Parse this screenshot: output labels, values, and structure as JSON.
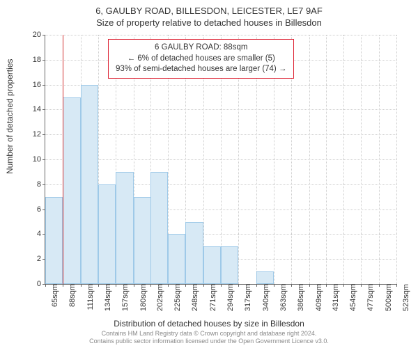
{
  "title": {
    "main": "6, GAULBY ROAD, BILLESDON, LEICESTER, LE7 9AF",
    "sub": "Size of property relative to detached houses in Billesdon"
  },
  "ylabel": "Number of detached properties",
  "xlabel": "Distribution of detached houses by size in Billesdon",
  "attribution_line1": "Contains HM Land Registry data © Crown copyright and database right 2024.",
  "attribution_line2": "Contains public sector information licensed under the Open Government Licence v3.0.",
  "info_box": {
    "line1": "6 GAULBY ROAD: 88sqm",
    "line2": "← 6% of detached houses are smaller (5)",
    "line3": "93% of semi-detached houses are larger (74) →"
  },
  "chart": {
    "type": "histogram",
    "ylim": [
      0,
      20
    ],
    "ytick_step": 2,
    "background_color": "#ffffff",
    "grid_color": "#cccccc",
    "bar_fill": "#d7e9f5",
    "bar_stroke": "#9ec9e8",
    "marker_color": "#d23030",
    "marker_x": 88,
    "bar_width_sqm": 23,
    "x_start": 65,
    "xticks": [
      65,
      88,
      111,
      134,
      157,
      180,
      202,
      225,
      248,
      271,
      294,
      317,
      340,
      363,
      386,
      409,
      431,
      454,
      477,
      500,
      523
    ],
    "xtick_suffix": "sqm",
    "values": [
      7,
      15,
      16,
      8,
      9,
      7,
      9,
      4,
      5,
      3,
      3,
      0,
      1,
      0,
      0,
      0,
      0,
      0,
      0,
      0
    ]
  }
}
